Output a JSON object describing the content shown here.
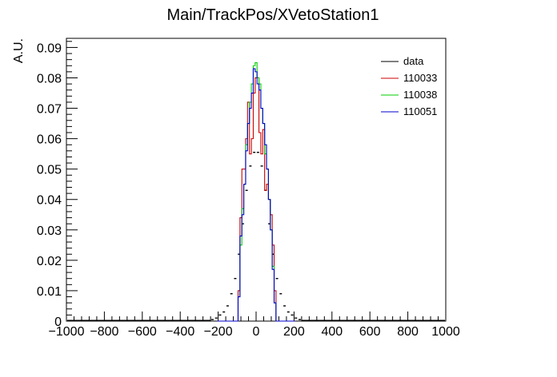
{
  "chart_data": {
    "type": "line",
    "title": "Main/TrackPos/XVetoStation1",
    "xlabel": "",
    "ylabel": "A.U.",
    "xlim": [
      -1000,
      1000
    ],
    "ylim": [
      0,
      0.093
    ],
    "x_ticks": [
      "−1000",
      "−800",
      "−600",
      "−400",
      "−200",
      "0",
      "200",
      "400",
      "600",
      "800",
      "1000"
    ],
    "x_tick_values": [
      -1000,
      -800,
      -600,
      -400,
      -200,
      0,
      200,
      400,
      600,
      800,
      1000
    ],
    "y_ticks": [
      "0",
      "0.01",
      "0.02",
      "0.03",
      "0.04",
      "0.05",
      "0.06",
      "0.07",
      "0.08",
      "0.09"
    ],
    "y_tick_values": [
      0,
      0.01,
      0.02,
      0.03,
      0.04,
      0.05,
      0.06,
      0.07,
      0.08,
      0.09
    ],
    "grid": false,
    "legend_position": "top-right",
    "legend": [
      "data",
      "110033",
      "110038",
      "110051"
    ],
    "series": [
      {
        "name": "data",
        "style": "error-points",
        "color": "#000000",
        "x": [
          -230,
          -210,
          -190,
          -170,
          -150,
          -130,
          -110,
          -90,
          -70,
          -50,
          -30,
          -10,
          10,
          30,
          50,
          70,
          90,
          110,
          130,
          150,
          170,
          190,
          210,
          230
        ],
        "values": [
          0.0005,
          0.001,
          0.002,
          0.003,
          0.005,
          0.009,
          0.014,
          0.022,
          0.032,
          0.043,
          0.051,
          0.0555,
          0.0555,
          0.051,
          0.043,
          0.032,
          0.022,
          0.014,
          0.009,
          0.005,
          0.003,
          0.002,
          0.001,
          0.0005
        ]
      },
      {
        "name": "110033",
        "style": "step",
        "color": "#cc0000",
        "x": [
          -200,
          -190,
          -180,
          -170,
          -160,
          -150,
          -140,
          -130,
          -120,
          -110,
          -100,
          -90,
          -80,
          -70,
          -60,
          -50,
          -40,
          -30,
          -20,
          -10,
          0,
          10,
          20,
          30,
          40,
          50,
          60,
          70,
          80,
          90,
          100,
          110,
          120,
          130,
          140,
          150,
          160,
          170,
          180,
          190,
          200
        ],
        "values": [
          0,
          0,
          0,
          0,
          0,
          0,
          0,
          0,
          0,
          0,
          0,
          0.01,
          0.034,
          0.05,
          0.05,
          0.06,
          0.072,
          0.055,
          0.06,
          0.075,
          0.08,
          0.08,
          0.062,
          0.055,
          0.063,
          0.043,
          0.045,
          0.04,
          0.035,
          0.025,
          0.01,
          0,
          0,
          0,
          0,
          0,
          0,
          0,
          0,
          0,
          0
        ]
      },
      {
        "name": "110038",
        "style": "step",
        "color": "#00cc00",
        "x": [
          -200,
          -190,
          -180,
          -170,
          -160,
          -150,
          -140,
          -130,
          -120,
          -110,
          -100,
          -90,
          -80,
          -70,
          -60,
          -50,
          -40,
          -30,
          -20,
          -10,
          0,
          10,
          20,
          30,
          40,
          50,
          60,
          70,
          80,
          90,
          100,
          110,
          120,
          130,
          140,
          150,
          160,
          170,
          180,
          190,
          200
        ],
        "values": [
          0,
          0,
          0,
          0,
          0,
          0,
          0,
          0,
          0,
          0,
          0,
          0.008,
          0.025,
          0.037,
          0.045,
          0.058,
          0.065,
          0.072,
          0.078,
          0.084,
          0.085,
          0.08,
          0.078,
          0.07,
          0.065,
          0.055,
          0.05,
          0.04,
          0.03,
          0.018,
          0.006,
          0,
          0,
          0,
          0,
          0,
          0,
          0,
          0,
          0,
          0
        ]
      },
      {
        "name": "110051",
        "style": "step",
        "color": "#0000cc",
        "x": [
          -200,
          -190,
          -180,
          -170,
          -160,
          -150,
          -140,
          -130,
          -120,
          -110,
          -100,
          -90,
          -80,
          -70,
          -60,
          -50,
          -40,
          -30,
          -20,
          -10,
          0,
          10,
          20,
          30,
          40,
          50,
          60,
          70,
          80,
          90,
          100,
          110,
          120,
          130,
          140,
          150,
          160,
          170,
          180,
          190,
          200
        ],
        "values": [
          0,
          0,
          0,
          0,
          0,
          0,
          0,
          0,
          0,
          0,
          0,
          0.008,
          0.028,
          0.035,
          0.045,
          0.056,
          0.065,
          0.07,
          0.075,
          0.083,
          0.082,
          0.078,
          0.076,
          0.07,
          0.065,
          0.058,
          0.05,
          0.04,
          0.03,
          0.017,
          0.006,
          0,
          0,
          0,
          0,
          0,
          0,
          0,
          0,
          0,
          0
        ]
      }
    ]
  }
}
